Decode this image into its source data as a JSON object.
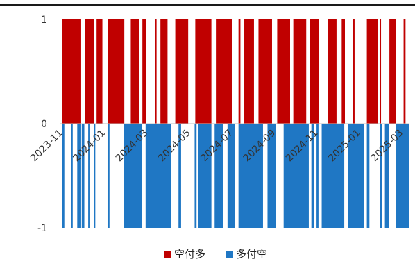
{
  "chart_data": {
    "type": "bar",
    "title": "",
    "xlabel": "",
    "ylabel": "",
    "ylim": [
      -1,
      1
    ],
    "yticks": [
      1,
      0,
      -1
    ],
    "x_tick_labels": [
      "2023-11",
      "2024-01",
      "2024-03",
      "2024-05",
      "2024-07",
      "2024-09",
      "2024-11",
      "2025-01",
      "2025-03"
    ],
    "x_range": [
      "2023-11-01",
      "2025-04-22"
    ],
    "legend_position": "bottom",
    "series": [
      {
        "name": "空付多",
        "color": "#c00000",
        "value": 1,
        "intervals": [
          [
            "2023-11-01",
            "2023-11-30"
          ],
          [
            "2023-12-07",
            "2023-12-21"
          ],
          [
            "2023-12-25",
            "2024-01-03"
          ],
          [
            "2024-01-12",
            "2024-02-06"
          ],
          [
            "2024-02-16",
            "2024-02-29"
          ],
          [
            "2024-03-05",
            "2024-03-11"
          ],
          [
            "2024-03-25",
            "2024-03-27"
          ],
          [
            "2024-04-02",
            "2024-04-13"
          ],
          [
            "2024-04-25",
            "2024-05-15"
          ],
          [
            "2024-05-26",
            "2024-06-20"
          ],
          [
            "2024-06-27",
            "2024-07-22"
          ],
          [
            "2024-08-01",
            "2024-08-04"
          ],
          [
            "2024-08-10",
            "2024-08-25"
          ],
          [
            "2024-09-01",
            "2024-09-22"
          ],
          [
            "2024-09-30",
            "2024-10-20"
          ],
          [
            "2024-10-25",
            "2024-11-14"
          ],
          [
            "2024-11-20",
            "2024-12-04"
          ],
          [
            "2024-12-18",
            "2024-12-31"
          ],
          [
            "2025-01-08",
            "2025-01-13"
          ],
          [
            "2025-01-25",
            "2025-01-28"
          ],
          [
            "2025-02-16",
            "2025-03-05"
          ],
          [
            "2025-03-08",
            "2025-03-10"
          ],
          [
            "2025-03-23",
            "2025-04-02"
          ],
          [
            "2025-04-14",
            "2025-04-17"
          ]
        ]
      },
      {
        "name": "多付空",
        "color": "#1f77c4",
        "value": -1,
        "intervals": [
          [
            "2023-11-01",
            "2023-11-05"
          ],
          [
            "2023-11-15",
            "2023-11-18"
          ],
          [
            "2023-11-25",
            "2023-11-30"
          ],
          [
            "2023-12-02",
            "2023-12-06"
          ],
          [
            "2023-12-12",
            "2023-12-14"
          ],
          [
            "2023-12-21",
            "2023-12-23"
          ],
          [
            "2024-01-11",
            "2024-01-14"
          ],
          [
            "2024-02-05",
            "2024-03-04"
          ],
          [
            "2024-03-10",
            "2024-04-18"
          ],
          [
            "2024-04-30",
            "2024-05-04"
          ],
          [
            "2024-05-25",
            "2024-05-28"
          ],
          [
            "2024-05-30",
            "2024-06-20"
          ],
          [
            "2024-06-25",
            "2024-07-08"
          ],
          [
            "2024-07-15",
            "2024-07-26"
          ],
          [
            "2024-08-01",
            "2024-09-08"
          ],
          [
            "2024-09-15",
            "2024-09-28"
          ],
          [
            "2024-10-10",
            "2024-11-18"
          ],
          [
            "2024-11-22",
            "2024-11-26"
          ],
          [
            "2024-11-30",
            "2024-12-03"
          ],
          [
            "2024-12-08",
            "2025-01-12"
          ],
          [
            "2025-01-18",
            "2025-02-12"
          ],
          [
            "2025-02-16",
            "2025-02-20"
          ],
          [
            "2025-03-08",
            "2025-03-12"
          ],
          [
            "2025-03-16",
            "2025-03-22"
          ],
          [
            "2025-04-02",
            "2025-04-22"
          ]
        ]
      }
    ]
  }
}
